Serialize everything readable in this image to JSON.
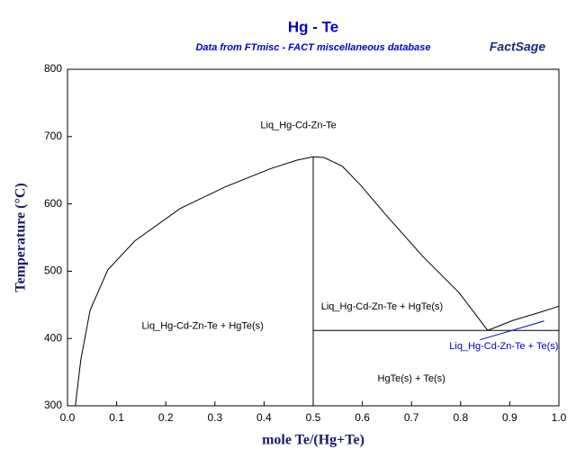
{
  "chart_data": {
    "type": "line",
    "title": "Hg - Te",
    "subtitle": "Data from FTmisc - FACT miscellaneous database",
    "logo": "FactSage",
    "x_label": "mole Te/(Hg+Te)",
    "y_label": "Temperature (°C)",
    "xlim": [
      0,
      1
    ],
    "ylim": [
      300,
      800
    ],
    "xticks": [
      {
        "value": 0,
        "label": "0.0"
      },
      0.1,
      0.2,
      0.3,
      0.4,
      0.5,
      0.6,
      0.7,
      0.8,
      0.9,
      {
        "value": 1,
        "label": "1.0"
      }
    ],
    "yticks": [
      300,
      400,
      500,
      600,
      700,
      800
    ],
    "series": [
      {
        "color": "#000000",
        "x": [
          0.016,
          0.027,
          0.046,
          0.082,
          0.137,
          0.229,
          0.32,
          0.412,
          0.467,
          0.5
        ],
        "y": [
          300,
          368,
          442,
          502,
          545,
          593,
          625,
          652,
          665,
          670
        ]
      },
      {
        "color": "#000000",
        "x": [
          0.5,
          0.522,
          0.559,
          0.595,
          0.65,
          0.723,
          0.797,
          0.855
        ],
        "y": [
          670,
          669,
          656,
          629,
          582,
          522,
          468,
          412
        ]
      },
      {
        "color": "#000000",
        "x": [
          0.855,
          0.907,
          0.962,
          1
        ],
        "y": [
          412,
          427,
          439,
          448
        ]
      },
      {
        "color": "#000000",
        "x": [
          0.5,
          1
        ],
        "y": [
          412,
          412
        ]
      },
      {
        "color": "#000000",
        "x": [
          0.5,
          0.5
        ],
        "y": [
          300,
          670
        ]
      },
      {
        "color": "#0000cc",
        "x": [
          0.839,
          0.97
        ],
        "y": [
          398,
          426
        ]
      }
    ],
    "annotations": [
      {
        "text": "Liq_Hg-Cd-Zn-Te",
        "x": 0.47,
        "y": 716,
        "color": "#000000"
      },
      {
        "text": "Liq_Hg-Cd-Zn-Te + HgTe(s)",
        "x": 0.275,
        "y": 418,
        "color": "#000000"
      },
      {
        "text": "Liq_Hg-Cd-Zn-Te + HgTe(s)",
        "x": 0.64,
        "y": 447,
        "color": "#000000"
      },
      {
        "text": "HgTe(s) + Te(s)",
        "x": 0.7,
        "y": 340,
        "color": "#000000"
      },
      {
        "text": "Liq_Hg-Cd-Zn-Te + Te(s)",
        "x": 0.888,
        "y": 388,
        "color": "#0000cc"
      }
    ]
  }
}
